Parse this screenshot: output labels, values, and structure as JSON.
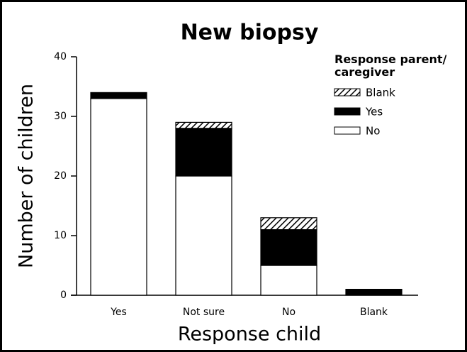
{
  "chart_data": {
    "type": "stacked_bar",
    "title": "New biopsy",
    "x_label": "Response child",
    "y_label": "Number of children",
    "legend_title": "Response parent/ caregiver",
    "categories": [
      "Yes",
      "Not sure",
      "No",
      "Blank"
    ],
    "series": [
      {
        "name": "No",
        "color": "#ffffff",
        "values": [
          33,
          20,
          5,
          0
        ]
      },
      {
        "name": "Yes",
        "color": "#000000",
        "values": [
          1,
          8,
          6,
          1
        ]
      },
      {
        "name": "Blank",
        "color": "#000000",
        "pattern": "hatch",
        "values": [
          0,
          1,
          2,
          0
        ]
      }
    ],
    "ylim": [
      0,
      40
    ],
    "yticks": [
      0,
      10,
      20,
      30,
      40
    ],
    "grid": false,
    "legend": "upper right"
  }
}
